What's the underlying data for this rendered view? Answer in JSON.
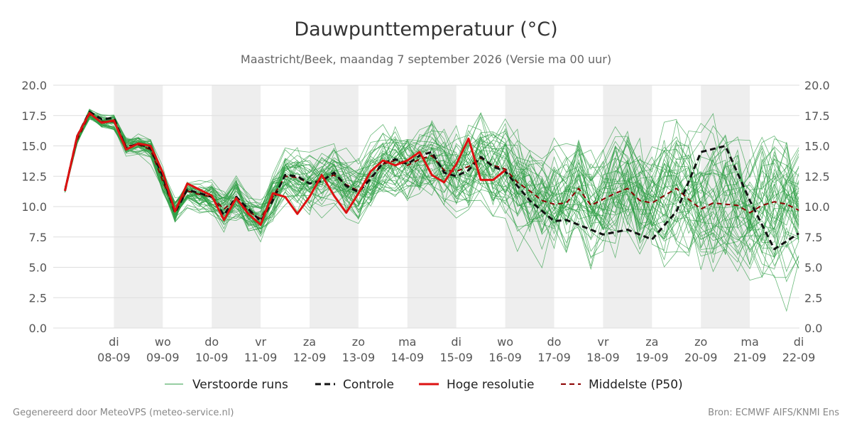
{
  "chart_data": {
    "type": "line",
    "title": "Dauwpunttemperatuur (°C)",
    "subtitle": "Maastricht/Beek, maandag  7 september 2026 (Versie ma 00 uur)",
    "x_unit": "dagen vanaf 7 september 2026 00 uur",
    "x_range": [
      0,
      15
    ],
    "ylim": [
      0,
      20
    ],
    "y_ticks": [
      "0.0",
      "2.5",
      "5.0",
      "7.5",
      "10.0",
      "12.5",
      "15.0",
      "17.5",
      "20.0"
    ],
    "x_ticks": [
      {
        "day": "di",
        "date": "08-09"
      },
      {
        "day": "wo",
        "date": "09-09"
      },
      {
        "day": "do",
        "date": "10-09"
      },
      {
        "day": "vr",
        "date": "11-09"
      },
      {
        "day": "za",
        "date": "12-09"
      },
      {
        "day": "zo",
        "date": "13-09"
      },
      {
        "day": "ma",
        "date": "14-09"
      },
      {
        "day": "di",
        "date": "15-09"
      },
      {
        "day": "wo",
        "date": "16-09"
      },
      {
        "day": "do",
        "date": "17-09"
      },
      {
        "day": "vr",
        "date": "18-09"
      },
      {
        "day": "za",
        "date": "19-09"
      },
      {
        "day": "zo",
        "date": "20-09"
      },
      {
        "day": "ma",
        "date": "21-09"
      },
      {
        "day": "di",
        "date": "22-09"
      }
    ],
    "shaded_days": [
      1,
      3,
      5,
      7,
      9,
      11,
      13
    ],
    "series": [
      {
        "name": "Controle",
        "style": "dashed",
        "color": "#111111",
        "x": [
          0,
          0.25,
          0.5,
          0.75,
          1,
          1.25,
          1.5,
          1.75,
          2,
          2.25,
          2.5,
          2.75,
          3,
          3.25,
          3.5,
          3.75,
          4,
          4.25,
          4.5,
          4.75,
          5,
          5.25,
          5.5,
          5.75,
          6,
          6.25,
          6.5,
          6.75,
          7,
          7.25,
          7.5,
          7.75,
          8,
          8.25,
          8.5,
          8.75,
          9,
          9.5,
          10,
          10.25,
          10.5,
          11,
          11.5,
          12,
          12.5,
          13,
          13.5,
          14,
          14.5,
          15
        ],
        "y": [
          11.3,
          15.8,
          17.8,
          17.2,
          17.3,
          14.8,
          15.2,
          14.8,
          12.5,
          9.5,
          11.4,
          11.1,
          10.8,
          9.3,
          10.8,
          9.8,
          8.8,
          10.5,
          12.6,
          12.5,
          11.9,
          12.1,
          12.8,
          11.7,
          11.2,
          12.3,
          13.6,
          13.9,
          13.5,
          14.2,
          14.5,
          12.8,
          12.5,
          13.0,
          14.1,
          13.3,
          12.9,
          10.5,
          8.8,
          8.9,
          8.5,
          7.7,
          8.1,
          7.3,
          9.6,
          14.5,
          15.0,
          10.5,
          6.5,
          7.8
        ]
      },
      {
        "name": "Hoge resolutie",
        "style": "solid",
        "color": "#dd1111",
        "x": [
          0,
          0.25,
          0.5,
          0.75,
          1,
          1.25,
          1.5,
          1.75,
          2,
          2.25,
          2.5,
          2.75,
          3,
          3.25,
          3.5,
          3.75,
          4,
          4.25,
          4.5,
          4.75,
          5,
          5.25,
          5.5,
          5.75,
          6,
          6.25,
          6.5,
          6.75,
          7,
          7.25,
          7.5,
          7.75,
          8,
          8.25,
          8.5,
          8.75,
          9
        ],
        "y": [
          11.3,
          15.8,
          17.7,
          16.9,
          17.1,
          14.7,
          15.2,
          15.0,
          12.8,
          9.6,
          11.9,
          11.4,
          10.9,
          8.9,
          10.7,
          9.4,
          8.5,
          11.1,
          10.8,
          9.4,
          10.8,
          12.6,
          10.9,
          9.5,
          11.1,
          12.9,
          13.8,
          13.4,
          13.8,
          14.5,
          12.6,
          12.0,
          13.5,
          15.6,
          12.2,
          12.2,
          13.0
        ]
      },
      {
        "name": "Middelste (P50)",
        "style": "dashed",
        "color": "#8b0000",
        "x": [
          0,
          0.25,
          0.5,
          0.75,
          1,
          1.25,
          1.5,
          1.75,
          2,
          2.25,
          2.5,
          2.75,
          3,
          3.25,
          3.5,
          3.75,
          4,
          4.25,
          4.5,
          4.75,
          5,
          5.25,
          5.5,
          5.75,
          6,
          6.25,
          6.5,
          6.75,
          7,
          7.25,
          7.5,
          7.75,
          8,
          8.25,
          8.5,
          8.75,
          9,
          9.25,
          9.5,
          9.75,
          10,
          10.25,
          10.5,
          10.75,
          11,
          11.25,
          11.5,
          11.75,
          12,
          12.25,
          12.5,
          12.75,
          13,
          13.25,
          13.5,
          13.75,
          14,
          14.25,
          14.5,
          14.75,
          15
        ],
        "y": [
          11.4,
          15.5,
          17.6,
          17.0,
          17.0,
          15.0,
          15.1,
          14.7,
          12.1,
          9.7,
          11.3,
          11.0,
          10.8,
          9.8,
          10.6,
          9.6,
          9.0,
          10.8,
          12.5,
          12.4,
          11.9,
          12.2,
          12.6,
          11.8,
          11.3,
          12.4,
          13.5,
          13.8,
          13.4,
          13.9,
          14.2,
          13.0,
          12.9,
          13.3,
          14.0,
          13.4,
          13.1,
          12.0,
          11.3,
          10.5,
          10.2,
          10.3,
          11.5,
          10.1,
          10.6,
          11.1,
          11.5,
          10.5,
          10.3,
          10.9,
          11.5,
          10.6,
          9.8,
          10.3,
          10.2,
          10.1,
          9.5,
          10.1,
          10.4,
          10.2,
          9.7
        ]
      }
    ],
    "ensemble": {
      "name": "Verstoorde runs",
      "members": 50,
      "color": "#2e9e44",
      "style": "thin"
    },
    "legend": {
      "placement": "bottom",
      "entries": [
        "Verstoorde runs",
        "Controle",
        "Hoge resolutie",
        "Middelste (P50)"
      ]
    },
    "grid": true
  },
  "footer": {
    "left": "Gegenereerd door MeteoVPS (meteo-service.nl)",
    "right": "Bron: ECMWF AIFS/KNMI Ens"
  }
}
